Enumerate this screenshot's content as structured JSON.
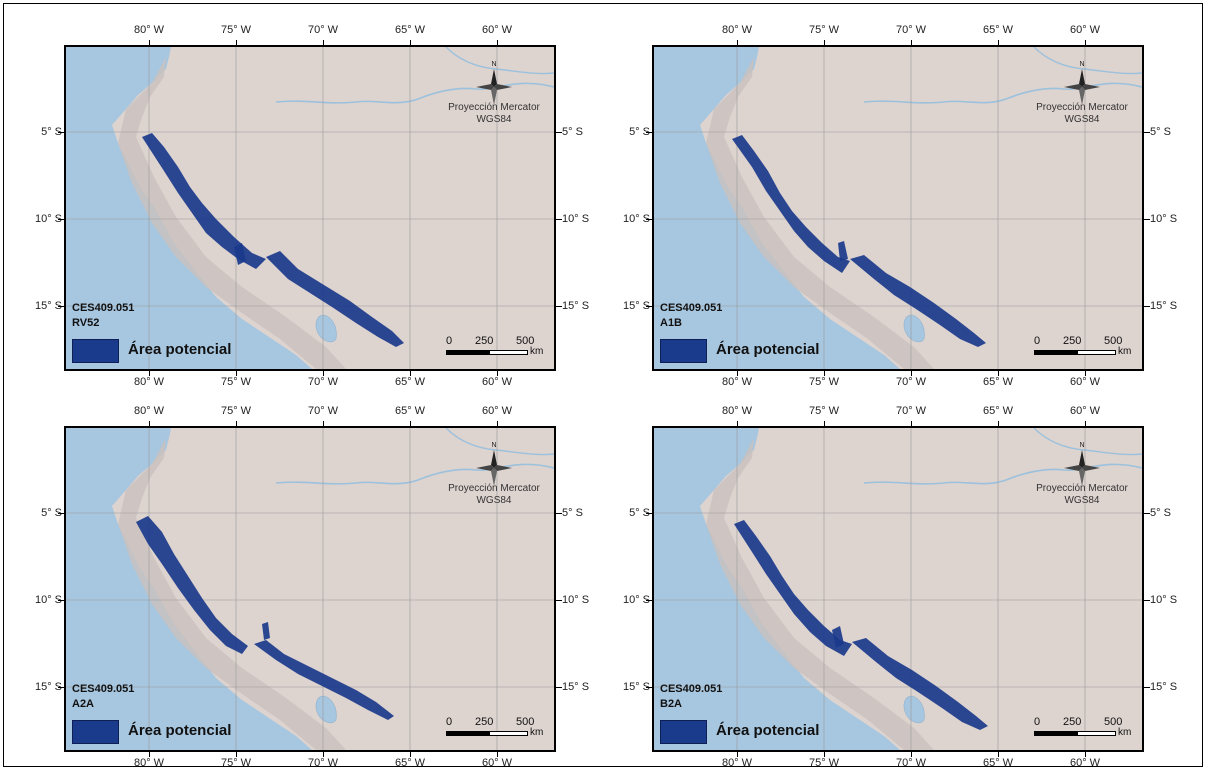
{
  "panels": [
    {
      "code": "CES409.051",
      "scenario": "RV52"
    },
    {
      "code": "CES409.051",
      "scenario": "A1B"
    },
    {
      "code": "CES409.051",
      "scenario": "A2A"
    },
    {
      "code": "CES409.051",
      "scenario": "B2A"
    }
  ],
  "legend_label": "Área potencial",
  "projection": {
    "line1": "Proyección Mercator",
    "line2": "WGS84"
  },
  "north_label": "N",
  "scale": {
    "ticks": [
      "0",
      "250",
      "500"
    ],
    "unit": "km"
  },
  "lon_ticks": [
    "80° W",
    "75° W",
    "70° W",
    "65° W",
    "60° W"
  ],
  "lat_ticks": [
    "5° S",
    "10° S",
    "15° S"
  ],
  "colors": {
    "ocean": "#a7c6df",
    "land": "#ddd3cf",
    "range": "#1a3a8c",
    "river": "#9cc1dd",
    "grid": "#9a9a9a"
  }
}
